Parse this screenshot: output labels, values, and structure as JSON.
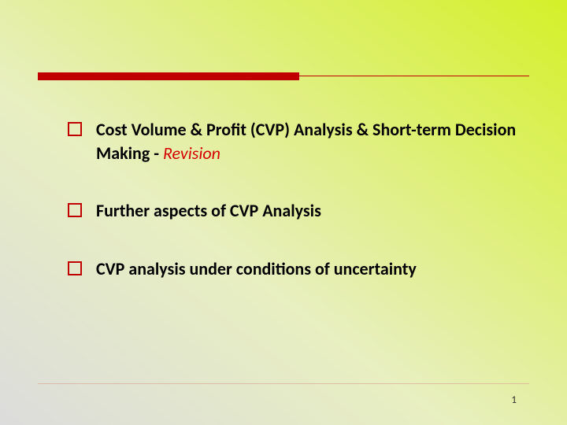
{
  "slide": {
    "background_gradient": {
      "from": "#dcdcdc",
      "mid": "#e8efc0",
      "to": "#d4f028"
    },
    "top_rule": {
      "thick_bar_color": "#c00000",
      "thick_bar_width": 332,
      "thick_bar_height": 10,
      "thin_line_color": "#c00000"
    },
    "bullets": [
      {
        "main": "Cost Volume & Profit (CVP) Analysis & Short-term Decision Making - ",
        "accent": "Revision"
      },
      {
        "main": "Further aspects of CVP Analysis",
        "accent": ""
      },
      {
        "main": "CVP analysis under conditions of uncertainty",
        "accent": ""
      }
    ],
    "bullet_style": {
      "box_border_color": "#c00000",
      "box_size": 18,
      "text_color": "#000000",
      "text_fontsize": 22,
      "text_fontweight": "bold",
      "accent_color": "#d40000",
      "accent_italic": true
    },
    "bottom_rule_color": "#d8a090",
    "page_number": "1",
    "page_number_color": "#333333",
    "page_number_fontsize": 13
  }
}
